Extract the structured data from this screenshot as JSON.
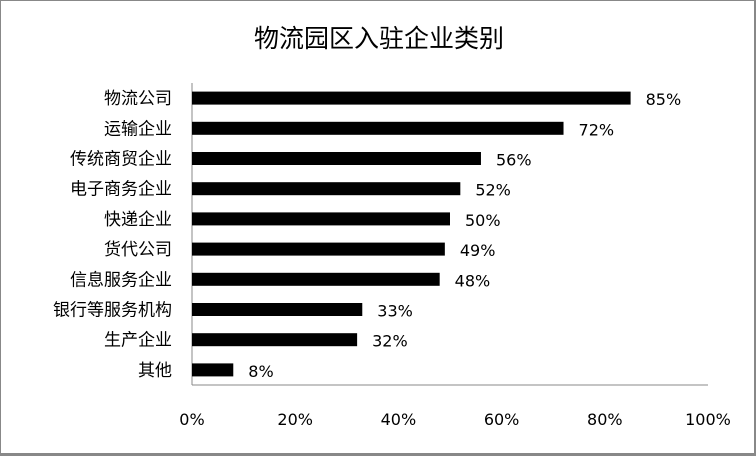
{
  "chart_data": {
    "type": "bar",
    "orientation": "horizontal",
    "title": "物流园区入驻企业类别",
    "categories": [
      "物流公司",
      "运输企业",
      "传统商贸企业",
      "电子商务企业",
      "快递企业",
      "货代公司",
      "信息服务企业",
      "银行等服务机构",
      "生产企业",
      "其他"
    ],
    "values": [
      85,
      72,
      56,
      52,
      50,
      49,
      48,
      33,
      32,
      8
    ],
    "value_labels": [
      "85%",
      "72%",
      "56%",
      "52%",
      "50%",
      "49%",
      "48%",
      "33%",
      "32%",
      "8%"
    ],
    "xlim": [
      0,
      100
    ],
    "xticks": [
      "0%",
      "20%",
      "40%",
      "60%",
      "80%",
      "100%"
    ],
    "xtick_values": [
      0,
      20,
      40,
      60,
      80,
      100
    ],
    "grid": false,
    "legend": "none",
    "bar_color": "#000000",
    "xlabel": "",
    "ylabel": ""
  }
}
